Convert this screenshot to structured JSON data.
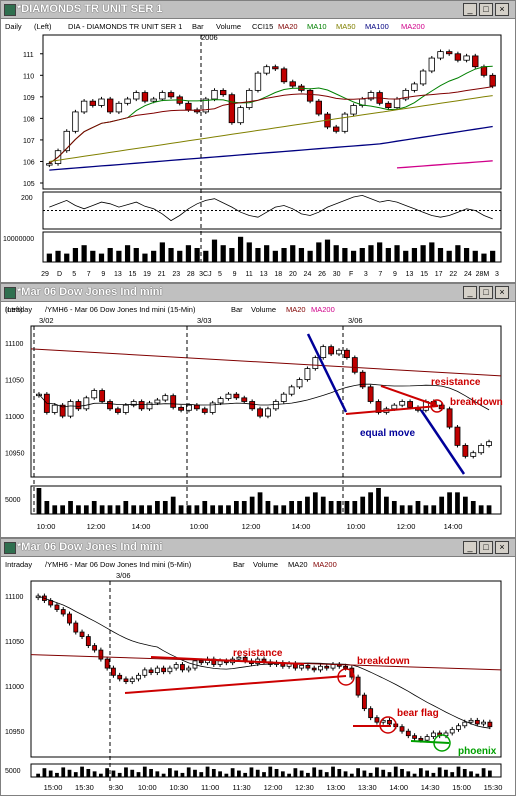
{
  "windows": [
    {
      "title": "*DIAMONDS TR UNIT SER 1",
      "header": {
        "period": "Daily",
        "axis": "(Left)",
        "symbol": "DIA - DIAMONDS TR UNIT SER 1",
        "kind": "Bar",
        "volume": "Volume",
        "cci": "CCI15",
        "ma20": "MA20",
        "ma10": "MA10",
        "ma50": "MA50",
        "ma100": "MA100",
        "ma200": "MA200"
      },
      "sublabel": "2006"
    },
    {
      "title": "*Mar 06  Dow Jones Ind mini",
      "header": {
        "period": "Intraday",
        "axis": "(Left)",
        "symbol": "/YMH6 - Mar 06  Dow Jones Ind mini (15-Min)",
        "kind": "Bar",
        "volume": "Volume",
        "ma20": "MA20",
        "ma200": "MA200"
      },
      "annotations": {
        "resistance": "resistance",
        "breakdown": "breakdown",
        "equal_move": "equal move"
      }
    },
    {
      "title": "*Mar 06  Dow Jones Ind mini",
      "header": {
        "period": "Intraday",
        "axis": "(Left)",
        "symbol": "/YMH6 - Mar 06  Dow Jones Ind mini (5-Min)",
        "kind": "Bar",
        "volume": "Volume",
        "ma20": "MA20",
        "ma200": "MA200"
      },
      "annotations": {
        "resistance": "resistance",
        "breakdown": "breakdown",
        "bear_flag": "bear flag",
        "phoenix": "phoenix"
      }
    }
  ],
  "colors": {
    "up": "#ffffff",
    "down": "#c00000",
    "ma10": "#008000",
    "ma20": "#800000",
    "ma50": "#808000",
    "ma100": "#000080",
    "ma200": "#d0008a",
    "volume": "#000000",
    "annot_red": "#cc0000",
    "annot_blue": "#000099",
    "annot_green": "#00a000"
  },
  "chart_data": [
    {
      "type": "bar",
      "subtype": "candlestick",
      "ylim": [
        105,
        111.5
      ],
      "y_ticks": [
        "111",
        "110",
        "109",
        "108",
        "107",
        "106",
        "105"
      ],
      "x_labels": [
        "29",
        "D",
        "5",
        "7",
        "9",
        "13",
        "15",
        "19",
        "21",
        "23",
        "28",
        "3",
        "J",
        "5",
        "9",
        "11",
        "13",
        "18",
        "20",
        "24",
        "26",
        "30",
        "F",
        "3",
        "7",
        "9",
        "13",
        "15",
        "17",
        "22",
        "24",
        "28",
        "M",
        "3"
      ],
      "x_labels_display": [
        "29",
        "D",
        "5",
        "7",
        "9",
        "13",
        "15",
        "19",
        "21",
        "23",
        "28",
        "3CJ",
        "5",
        "9",
        "11",
        "13",
        "18",
        "20",
        "24",
        "26",
        "30",
        "F",
        "3",
        "7",
        "9",
        "13",
        "15",
        "17",
        "22",
        "24",
        "28M",
        "3"
      ],
      "closes": [
        105.9,
        106.5,
        107.4,
        108.3,
        108.8,
        108.6,
        108.9,
        108.3,
        108.7,
        108.9,
        109.2,
        108.8,
        108.9,
        109.2,
        109.0,
        108.7,
        108.4,
        108.3,
        108.9,
        109.3,
        109.1,
        107.8,
        108.5,
        109.3,
        110.1,
        110.4,
        110.3,
        109.7,
        109.5,
        109.3,
        108.8,
        108.2,
        107.6,
        107.4,
        108.2,
        108.6,
        108.9,
        109.2,
        108.7,
        108.5,
        108.9,
        109.3,
        109.6,
        110.2,
        110.8,
        111.1,
        111.0,
        110.7,
        110.9,
        110.4,
        110.0,
        109.5
      ],
      "cci": {
        "ylabel": "200",
        "values": [
          40,
          80,
          120,
          60,
          20,
          60,
          100,
          80,
          40,
          70,
          100,
          50,
          20,
          -40,
          -120,
          -60,
          20,
          80,
          120,
          140,
          90,
          40,
          -20,
          -60,
          -80,
          -20,
          40,
          60,
          20,
          -40,
          -60,
          -20,
          40,
          80,
          120,
          160,
          180,
          140,
          100,
          120,
          100,
          60,
          20,
          -20,
          -60,
          -80,
          -60,
          -20,
          20,
          0,
          -60,
          -100
        ]
      },
      "volume": {
        "ylabel": "10000000",
        "values": [
          3,
          4,
          3,
          5,
          6,
          4,
          3,
          5,
          4,
          6,
          5,
          3,
          4,
          7,
          5,
          4,
          6,
          5,
          4,
          8,
          6,
          5,
          9,
          7,
          5,
          6,
          4,
          5,
          6,
          5,
          4,
          7,
          8,
          6,
          5,
          4,
          5,
          6,
          7,
          5,
          6,
          4,
          5,
          6,
          7,
          5,
          4,
          6,
          5,
          4,
          3,
          4
        ]
      }
    },
    {
      "type": "bar",
      "subtype": "candlestick",
      "ylim": [
        10925,
        11115
      ],
      "y_ticks": [
        "11100",
        "11050",
        "11000",
        "10950"
      ],
      "x_labels": [
        "10:00",
        "12:00",
        "14:00",
        "10:00",
        "12:00",
        "14:00",
        "10:00",
        "12:00",
        "14:00"
      ],
      "sessions": [
        "3/02",
        "3/03",
        "3/06"
      ],
      "closes": [
        11030,
        11005,
        11015,
        11000,
        11020,
        11010,
        11025,
        11035,
        11020,
        11010,
        11005,
        11015,
        11020,
        11010,
        11018,
        11022,
        11028,
        11012,
        11008,
        11015,
        11010,
        11005,
        11018,
        11024,
        11030,
        11025,
        11020,
        11010,
        11000,
        11010,
        11020,
        11030,
        11040,
        11050,
        11065,
        11080,
        11095,
        11085,
        11090,
        11080,
        11060,
        11040,
        11020,
        11005,
        11010,
        11015,
        11020,
        11012,
        11008,
        11020,
        11015,
        11010,
        10985,
        10960,
        10945,
        10950,
        10960,
        10965
      ],
      "volume": {
        "ylabel": "5000",
        "values": [
          6,
          3,
          2,
          2,
          3,
          2,
          2,
          3,
          2,
          2,
          2,
          3,
          2,
          2,
          2,
          3,
          3,
          4,
          2,
          2,
          2,
          3,
          2,
          2,
          2,
          3,
          3,
          4,
          5,
          3,
          2,
          2,
          3,
          3,
          4,
          5,
          4,
          3,
          3,
          3,
          3,
          4,
          5,
          6,
          4,
          3,
          2,
          2,
          3,
          2,
          2,
          4,
          5,
          5,
          4,
          3,
          2,
          2
        ]
      }
    },
    {
      "type": "bar",
      "subtype": "candlestick",
      "ylim": [
        10928,
        11110
      ],
      "y_ticks": [
        "11100",
        "11050",
        "11000",
        "10950"
      ],
      "x_labels": [
        "15:00",
        "15:30",
        "9:30",
        "10:00",
        "10:30",
        "11:00",
        "11:30",
        "12:00",
        "12:30",
        "13:00",
        "13:30",
        "14:00",
        "14:30",
        "15:00",
        "15:30"
      ],
      "sessions": [
        "3/06"
      ],
      "closes": [
        11100,
        11095,
        11090,
        11085,
        11080,
        11070,
        11060,
        11055,
        11045,
        11040,
        11030,
        11020,
        11012,
        11008,
        11005,
        11008,
        11012,
        11018,
        11015,
        11020,
        11016,
        11020,
        11024,
        11018,
        11020,
        11028,
        11026,
        11030,
        11024,
        11028,
        11026,
        11030,
        11032,
        11028,
        11025,
        11030,
        11027,
        11024,
        11026,
        11022,
        11025,
        11020,
        11023,
        11020,
        11018,
        11022,
        11020,
        11024,
        11022,
        11020,
        11010,
        10990,
        10975,
        10965,
        10960,
        10962,
        10958,
        10955,
        10950,
        10945,
        10942,
        10940,
        10944,
        10948,
        10945,
        10948,
        10952,
        10956,
        10960,
        10962,
        10958,
        10960,
        10955
      ],
      "volume": {
        "ylabel": "5000"
      }
    }
  ]
}
